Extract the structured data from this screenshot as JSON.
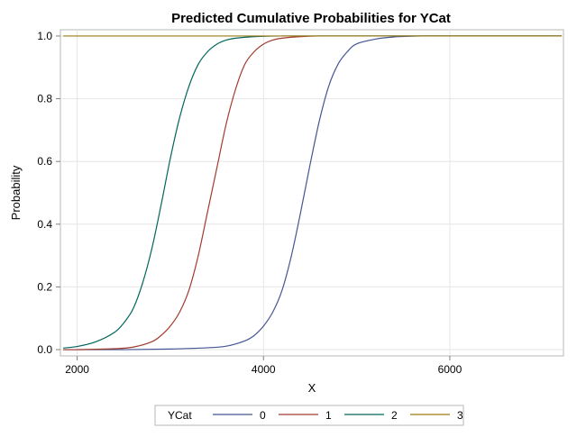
{
  "chart_data": {
    "type": "line",
    "title": "Predicted Cumulative Probabilities for YCat",
    "xlabel": "X",
    "ylabel": "Probability",
    "xlim": [
      1820,
      7220
    ],
    "ylim": [
      -0.02,
      1.02
    ],
    "x_ticks": [
      2000,
      4000,
      6000
    ],
    "y_ticks": [
      0.0,
      0.2,
      0.4,
      0.6,
      0.8,
      1.0
    ],
    "x_tick_labels": [
      "2000",
      "4000",
      "6000"
    ],
    "y_tick_labels": [
      "0.0",
      "0.2",
      "0.4",
      "0.6",
      "0.8",
      "1.0"
    ],
    "grid": true,
    "legend": {
      "title": "YCat",
      "placement": "bottom-center",
      "entries": [
        "0",
        "1",
        "2",
        "3"
      ]
    },
    "series": [
      {
        "name": "0",
        "color": "#445694",
        "x": [
          1850,
          2500,
          3000,
          3400,
          3600,
          3800,
          3900,
          4000,
          4100,
          4200,
          4300,
          4400,
          4500,
          4600,
          4700,
          4800,
          4900,
          5000,
          5200,
          5400,
          5700,
          6000,
          7200
        ],
        "y": [
          0.0,
          0.0,
          0.002,
          0.006,
          0.011,
          0.028,
          0.045,
          0.075,
          0.12,
          0.19,
          0.3,
          0.44,
          0.59,
          0.73,
          0.84,
          0.91,
          0.95,
          0.975,
          0.99,
          0.997,
          1.0,
          1.0,
          1.0
        ]
      },
      {
        "name": "1",
        "color": "#A23A2E",
        "x": [
          1850,
          2000,
          2400,
          2600,
          2800,
          2900,
          3000,
          3100,
          3200,
          3300,
          3400,
          3500,
          3600,
          3700,
          3800,
          3900,
          4000,
          4100,
          4200,
          4400,
          4600,
          5000,
          7200
        ],
        "y": [
          0.0,
          0.0,
          0.003,
          0.008,
          0.025,
          0.045,
          0.075,
          0.12,
          0.19,
          0.3,
          0.44,
          0.58,
          0.72,
          0.83,
          0.91,
          0.95,
          0.974,
          0.987,
          0.993,
          0.998,
          1.0,
          1.0,
          1.0
        ]
      },
      {
        "name": "2",
        "color": "#01665E",
        "x": [
          1850,
          2000,
          2200,
          2400,
          2500,
          2600,
          2700,
          2800,
          2900,
          3000,
          3100,
          3200,
          3300,
          3400,
          3500,
          3600,
          3700,
          3800,
          4000,
          4200,
          4500,
          7200
        ],
        "y": [
          0.005,
          0.01,
          0.025,
          0.055,
          0.085,
          0.13,
          0.21,
          0.32,
          0.46,
          0.61,
          0.74,
          0.84,
          0.91,
          0.95,
          0.974,
          0.987,
          0.993,
          0.996,
          0.999,
          1.0,
          1.0,
          1.0
        ]
      },
      {
        "name": "3",
        "color": "#9C7B15",
        "x": [
          1850,
          7200
        ],
        "y": [
          1.0,
          1.0
        ]
      }
    ]
  }
}
